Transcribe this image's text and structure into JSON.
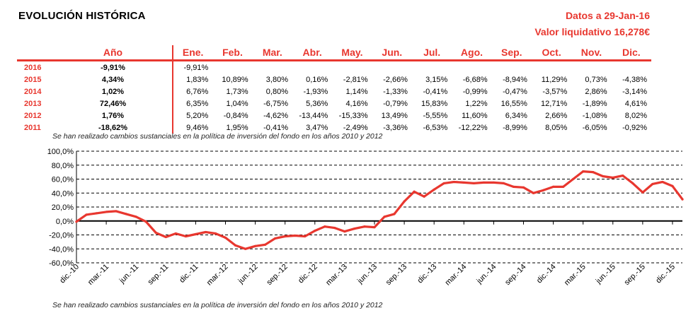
{
  "header": {
    "title": "EVOLUCIÓN HISTÓRICA",
    "date_line": "Datos a 29-Jan-16",
    "value_line": "Valor liquidativo 16,278€"
  },
  "table": {
    "annual_header": "Año",
    "months": [
      "Ene.",
      "Feb.",
      "Mar.",
      "Abr.",
      "May.",
      "Jun.",
      "Jul.",
      "Ago.",
      "Sep.",
      "Oct.",
      "Nov.",
      "Dic."
    ],
    "rows": [
      {
        "year": "2016",
        "annual": "-9,91%",
        "values": [
          "-9,91%",
          "",
          "",
          "",
          "",
          "",
          "",
          "",
          "",
          "",
          "",
          ""
        ]
      },
      {
        "year": "2015",
        "annual": "4,34%",
        "values": [
          "1,83%",
          "10,89%",
          "3,80%",
          "0,16%",
          "-2,81%",
          "-2,66%",
          "3,15%",
          "-6,68%",
          "-8,94%",
          "11,29%",
          "0,73%",
          "-4,38%"
        ]
      },
      {
        "year": "2014",
        "annual": "1,02%",
        "values": [
          "6,76%",
          "1,73%",
          "0,80%",
          "-1,93%",
          "1,14%",
          "-1,33%",
          "-0,41%",
          "-0,99%",
          "-0,47%",
          "-3,57%",
          "2,86%",
          "-3,14%"
        ]
      },
      {
        "year": "2013",
        "annual": "72,46%",
        "values": [
          "6,35%",
          "1,04%",
          "-6,75%",
          "5,36%",
          "4,16%",
          "-0,79%",
          "15,83%",
          "1,22%",
          "16,55%",
          "12,71%",
          "-1,89%",
          "4,61%"
        ]
      },
      {
        "year": "2012",
        "annual": "1,76%",
        "values": [
          "5,20%",
          "-0,84%",
          "-4,62%",
          "-13,44%",
          "-15,33%",
          "13,49%",
          "-5,55%",
          "11,60%",
          "6,34%",
          "2,66%",
          "-1,08%",
          "8,02%"
        ]
      },
      {
        "year": "2011",
        "annual": "-18,62%",
        "values": [
          "9,46%",
          "1,95%",
          "-0,41%",
          "3,47%",
          "-2,49%",
          "-3,36%",
          "-6,53%",
          "-12,22%",
          "-8,99%",
          "8,05%",
          "-6,05%",
          "-0,92%"
        ]
      }
    ],
    "accent_color": "#e8372f"
  },
  "notes": {
    "top": "Se han realizado cambios sustanciales en la política de inversión del fondo en los años 2010 y 2012",
    "bottom": "Se han realizado cambios sustanciales en la política de inversión del fondo en los años 2010 y 2012"
  },
  "chart_data": {
    "type": "line",
    "title": "",
    "xlabel": "",
    "ylabel": "",
    "ylim": [
      -60,
      100
    ],
    "y_ticks": [
      "-60,0%",
      "-40,0%",
      "-20,0%",
      "0,0%",
      "20,0%",
      "40,0%",
      "60,0%",
      "80,0%",
      "100,0%"
    ],
    "x_ticks": [
      "dic.-10",
      "mar.-11",
      "jun.-11",
      "sep.-11",
      "dic.-11",
      "mar.-12",
      "jun.-12",
      "sep.-12",
      "dic.-12",
      "mar.-13",
      "jun.-13",
      "sep.-13",
      "dic.-13",
      "mar.-14",
      "jun.-14",
      "sep.-14",
      "dic.-14",
      "mar.-15",
      "jun.-15",
      "sep.-15",
      "dic.-15"
    ],
    "grid": "horizontal dashed",
    "line_color": "#e8372f",
    "series": [
      {
        "x": [
          "dic.-10",
          "ene.-11",
          "feb.-11",
          "mar.-11",
          "abr.-11",
          "may.-11",
          "jun.-11",
          "jul.-11",
          "ago.-11",
          "sep.-11",
          "oct.-11",
          "nov.-11",
          "dic.-11",
          "ene.-12",
          "feb.-12",
          "mar.-12",
          "abr.-12",
          "may.-12",
          "jun.-12",
          "jul.-12",
          "ago.-12",
          "sep.-12",
          "oct.-12",
          "nov.-12",
          "dic.-12",
          "ene.-13",
          "feb.-13",
          "mar.-13",
          "abr.-13",
          "may.-13",
          "jun.-13",
          "jul.-13",
          "ago.-13",
          "sep.-13",
          "oct.-13",
          "nov.-13",
          "dic.-13",
          "ene.-14",
          "feb.-14",
          "mar.-14",
          "abr.-14",
          "may.-14",
          "jun.-14",
          "jul.-14",
          "ago.-14",
          "sep.-14",
          "oct.-14",
          "nov.-14",
          "dic.-14",
          "ene.-15",
          "feb.-15",
          "mar.-15",
          "abr.-15",
          "may.-15",
          "jun.-15",
          "jul.-15",
          "ago.-15",
          "sep.-15",
          "oct.-15",
          "nov.-15",
          "dic.-15",
          "ene.-16"
        ],
        "y": [
          -1,
          9,
          11,
          13,
          14,
          10,
          6,
          -1,
          -17,
          -23,
          -18,
          -22,
          -19,
          -16,
          -18,
          -24,
          -35,
          -40,
          -36,
          -34,
          -25,
          -22,
          -21,
          -22,
          -14,
          -8,
          -10,
          -15,
          -11,
          -8,
          -9,
          6,
          10,
          28,
          42,
          35,
          45,
          54,
          56,
          55,
          54,
          55,
          55,
          54,
          49,
          48,
          40,
          44,
          49,
          49,
          60,
          71,
          70,
          64,
          62,
          65,
          54,
          41,
          53,
          56,
          50,
          31
        ]
      }
    ]
  }
}
